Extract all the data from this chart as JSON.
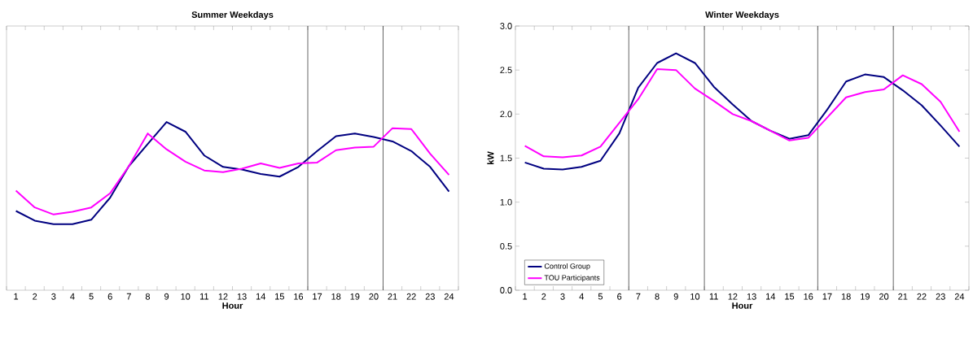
{
  "chart_data": [
    {
      "type": "line",
      "title": "Summer Weekdays",
      "xlabel": "Hour",
      "x": [
        1,
        2,
        3,
        4,
        5,
        6,
        7,
        8,
        9,
        10,
        11,
        12,
        13,
        14,
        15,
        16,
        17,
        18,
        19,
        20,
        21,
        22,
        23,
        24
      ],
      "xlim": [
        0.5,
        24.5
      ],
      "xticks": [
        1,
        2,
        3,
        4,
        5,
        6,
        7,
        8,
        9,
        10,
        11,
        12,
        13,
        14,
        15,
        16,
        17,
        18,
        19,
        20,
        21,
        22,
        23,
        24
      ],
      "ylim": [
        0,
        3
      ],
      "tick_labels": "x",
      "legend": false,
      "marker": "none",
      "line_style": "solid",
      "series": [
        {
          "color": "#000080",
          "values": [
            0.9,
            0.79,
            0.75,
            0.75,
            0.8,
            1.05,
            1.41,
            1.66,
            1.91,
            1.8,
            1.53,
            1.4,
            1.37,
            1.32,
            1.29,
            1.4,
            1.58,
            1.75,
            1.78,
            1.74,
            1.69,
            1.58,
            1.4,
            1.12
          ]
        },
        {
          "color": "#ff00ff",
          "values": [
            1.13,
            0.94,
            0.86,
            0.89,
            0.94,
            1.1,
            1.41,
            1.78,
            1.6,
            1.46,
            1.36,
            1.34,
            1.38,
            1.44,
            1.39,
            1.44,
            1.45,
            1.59,
            1.62,
            1.63,
            1.84,
            1.83,
            1.55,
            1.31
          ]
        }
      ],
      "ref_lines": [
        {
          "axis": "x",
          "value": 16.5,
          "color": "#000000"
        },
        {
          "axis": "x",
          "value": 20.5,
          "color": "#000000"
        }
      ]
    },
    {
      "type": "line",
      "title": "Winter Weekdays",
      "xlabel": "Hour",
      "ylabel": "kW",
      "x": [
        1,
        2,
        3,
        4,
        5,
        6,
        7,
        8,
        9,
        10,
        11,
        12,
        13,
        14,
        15,
        16,
        17,
        18,
        19,
        20,
        21,
        22,
        23,
        24
      ],
      "xlim": [
        0.5,
        24.5
      ],
      "xticks": [
        1,
        2,
        3,
        4,
        5,
        6,
        7,
        8,
        9,
        10,
        11,
        12,
        13,
        14,
        15,
        16,
        17,
        18,
        19,
        20,
        21,
        22,
        23,
        24
      ],
      "ylim": [
        0,
        3
      ],
      "yticks": [
        {
          "value": 0,
          "label": "0.0"
        },
        {
          "value": 0.5,
          "label": "0.5"
        },
        {
          "value": 1,
          "label": "1.0"
        },
        {
          "value": 1.5,
          "label": "1.5"
        },
        {
          "value": 2,
          "label": "2.0"
        },
        {
          "value": 2.5,
          "label": "2.5"
        },
        {
          "value": 3,
          "label": "3.0"
        }
      ],
      "legend": "bottom left",
      "marker": "none",
      "line_style": "solid",
      "series": [
        {
          "name": "Control Group",
          "color": "#000080",
          "values": [
            1.45,
            1.38,
            1.37,
            1.4,
            1.47,
            1.78,
            2.3,
            2.58,
            2.69,
            2.58,
            2.31,
            2.11,
            1.92,
            1.81,
            1.72,
            1.76,
            2.05,
            2.37,
            2.45,
            2.42,
            2.27,
            2.1,
            1.87,
            1.63
          ]
        },
        {
          "name": "TOU Participants",
          "color": "#ff00ff",
          "values": [
            1.64,
            1.52,
            1.51,
            1.53,
            1.63,
            1.9,
            2.17,
            2.51,
            2.5,
            2.29,
            2.15,
            2.0,
            1.92,
            1.81,
            1.7,
            1.73,
            1.96,
            2.19,
            2.25,
            2.28,
            2.44,
            2.34,
            2.14,
            1.8
          ]
        }
      ],
      "ref_lines": [
        {
          "axis": "x",
          "value": 6.5,
          "color": "#000000"
        },
        {
          "axis": "x",
          "value": 10.5,
          "color": "#000000"
        },
        {
          "axis": "x",
          "value": 16.5,
          "color": "#000000"
        },
        {
          "axis": "x",
          "value": 20.5,
          "color": "#000000"
        }
      ]
    }
  ]
}
